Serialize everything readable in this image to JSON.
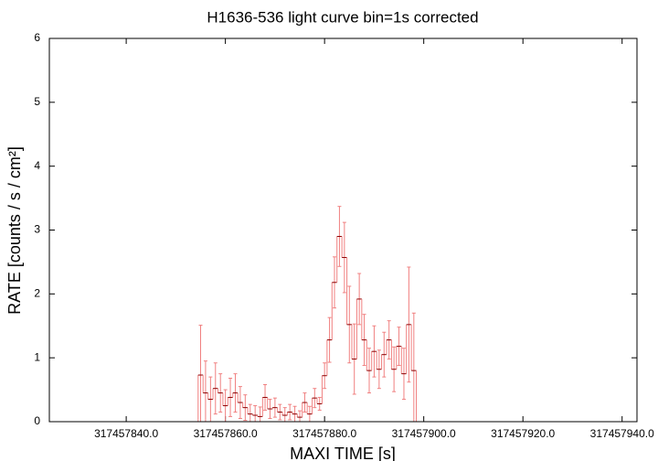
{
  "chart_data": {
    "type": "histeps",
    "title": "H1636-536 light curve bin=1s corrected",
    "xlabel": "MAXI TIME [s]",
    "ylabel": "RATE [counts / s / cm²]",
    "xlim": [
      317457824.5,
      317457943
    ],
    "ylim": [
      0,
      6
    ],
    "xticks": [
      {
        "value": 317457840,
        "label": "317457840.0"
      },
      {
        "value": 317457860,
        "label": "317457860.0"
      },
      {
        "value": 317457880,
        "label": "317457880.0"
      },
      {
        "value": 317457900,
        "label": "317457900.0"
      },
      {
        "value": 317457920,
        "label": "317457920.0"
      },
      {
        "value": 317457940,
        "label": "317457940.0"
      }
    ],
    "yticks": [
      0,
      1,
      2,
      3,
      4,
      5,
      6
    ],
    "line_color": "#8b0000",
    "error_color": "#f08080",
    "x": [
      317457825,
      317457826,
      317457827,
      317457828,
      317457829,
      317457830,
      317457831,
      317457832,
      317457833,
      317457834,
      317457835,
      317457836,
      317457837,
      317457838,
      317457839,
      317457840,
      317457841,
      317457842,
      317457843,
      317457844,
      317457845,
      317457846,
      317457847,
      317457848,
      317457849,
      317457850,
      317457851,
      317457852,
      317457853,
      317457854,
      317457855,
      317457856,
      317457857,
      317457858,
      317457859,
      317457860,
      317457861,
      317457862,
      317457863,
      317457864,
      317457865,
      317457866,
      317457867,
      317457868,
      317457869,
      317457870,
      317457871,
      317457872,
      317457873,
      317457874,
      317457875,
      317457876,
      317457877,
      317457878,
      317457879,
      317457880,
      317457881,
      317457882,
      317457883,
      317457884,
      317457885,
      317457886,
      317457887,
      317457888,
      317457889,
      317457890,
      317457891,
      317457892,
      317457893,
      317457894,
      317457895,
      317457896,
      317457897,
      317457898,
      317457899,
      317457900,
      317457901,
      317457902,
      317457903,
      317457904,
      317457905,
      317457906,
      317457907,
      317457908,
      317457909,
      317457910,
      317457911,
      317457912,
      317457913,
      317457914,
      317457915,
      317457916,
      317457917,
      317457918,
      317457919,
      317457920,
      317457921,
      317457922,
      317457923,
      317457924,
      317457925,
      317457926,
      317457927,
      317457928,
      317457929,
      317457930,
      317457931,
      317457932,
      317457933,
      317457934,
      317457935,
      317457936,
      317457937,
      317457938,
      317457939,
      317457940,
      317457941,
      317457942
    ],
    "values": [
      0,
      0,
      0,
      0,
      0,
      0,
      0,
      0,
      0,
      0,
      0,
      0,
      0,
      0,
      0,
      0,
      0,
      0,
      0,
      0,
      0,
      0,
      0,
      0,
      0,
      0,
      0,
      0,
      0,
      0,
      0.73,
      0.45,
      0.35,
      0.52,
      0.45,
      0.25,
      0.38,
      0.45,
      0.3,
      0.22,
      0.12,
      0.1,
      0.08,
      0.38,
      0.2,
      0.22,
      0.15,
      0.1,
      0.15,
      0.12,
      0.07,
      0.3,
      0.12,
      0.37,
      0.28,
      0.72,
      1.28,
      2.18,
      2.9,
      2.57,
      1.52,
      0.98,
      1.92,
      1.28,
      0.8,
      1.1,
      0.82,
      1.05,
      1.28,
      0.82,
      1.18,
      0.75,
      1.52,
      0.8,
      0,
      0,
      0,
      0,
      0,
      0,
      0,
      0,
      0,
      0,
      0,
      0,
      0,
      0,
      0,
      0,
      0,
      0,
      0,
      0,
      0,
      0,
      0,
      0,
      0,
      0,
      0,
      0,
      0,
      0,
      0,
      0,
      0,
      0,
      0,
      0,
      0,
      0,
      0,
      0,
      0,
      0,
      0,
      0
    ],
    "errors": [
      0,
      0,
      0,
      0,
      0,
      0,
      0,
      0,
      0,
      0,
      0,
      0,
      0,
      0,
      0,
      0,
      0,
      0,
      0,
      0,
      0,
      0,
      0,
      0,
      0,
      0,
      0,
      0,
      0,
      0,
      0.78,
      0.5,
      0.35,
      0.4,
      0.3,
      0.25,
      0.3,
      0.3,
      0.25,
      0.2,
      0.15,
      0.15,
      0.15,
      0.2,
      0.15,
      0.15,
      0.12,
      0.12,
      0.12,
      0.12,
      0.1,
      0.15,
      0.12,
      0.15,
      0.1,
      0.2,
      0.35,
      0.4,
      0.47,
      0.55,
      0.6,
      0.55,
      0.4,
      0.4,
      0.35,
      0.4,
      0.3,
      0.35,
      0.3,
      0.35,
      0.3,
      0.4,
      0.9,
      0.9,
      0,
      0,
      0,
      0,
      0,
      0,
      0,
      0,
      0,
      0,
      0,
      0,
      0,
      0,
      0,
      0,
      0,
      0,
      0,
      0,
      0,
      0,
      0,
      0,
      0,
      0,
      0,
      0,
      0,
      0,
      0,
      0,
      0,
      0,
      0,
      0,
      0,
      0,
      0,
      0,
      0,
      0,
      0,
      0
    ]
  }
}
